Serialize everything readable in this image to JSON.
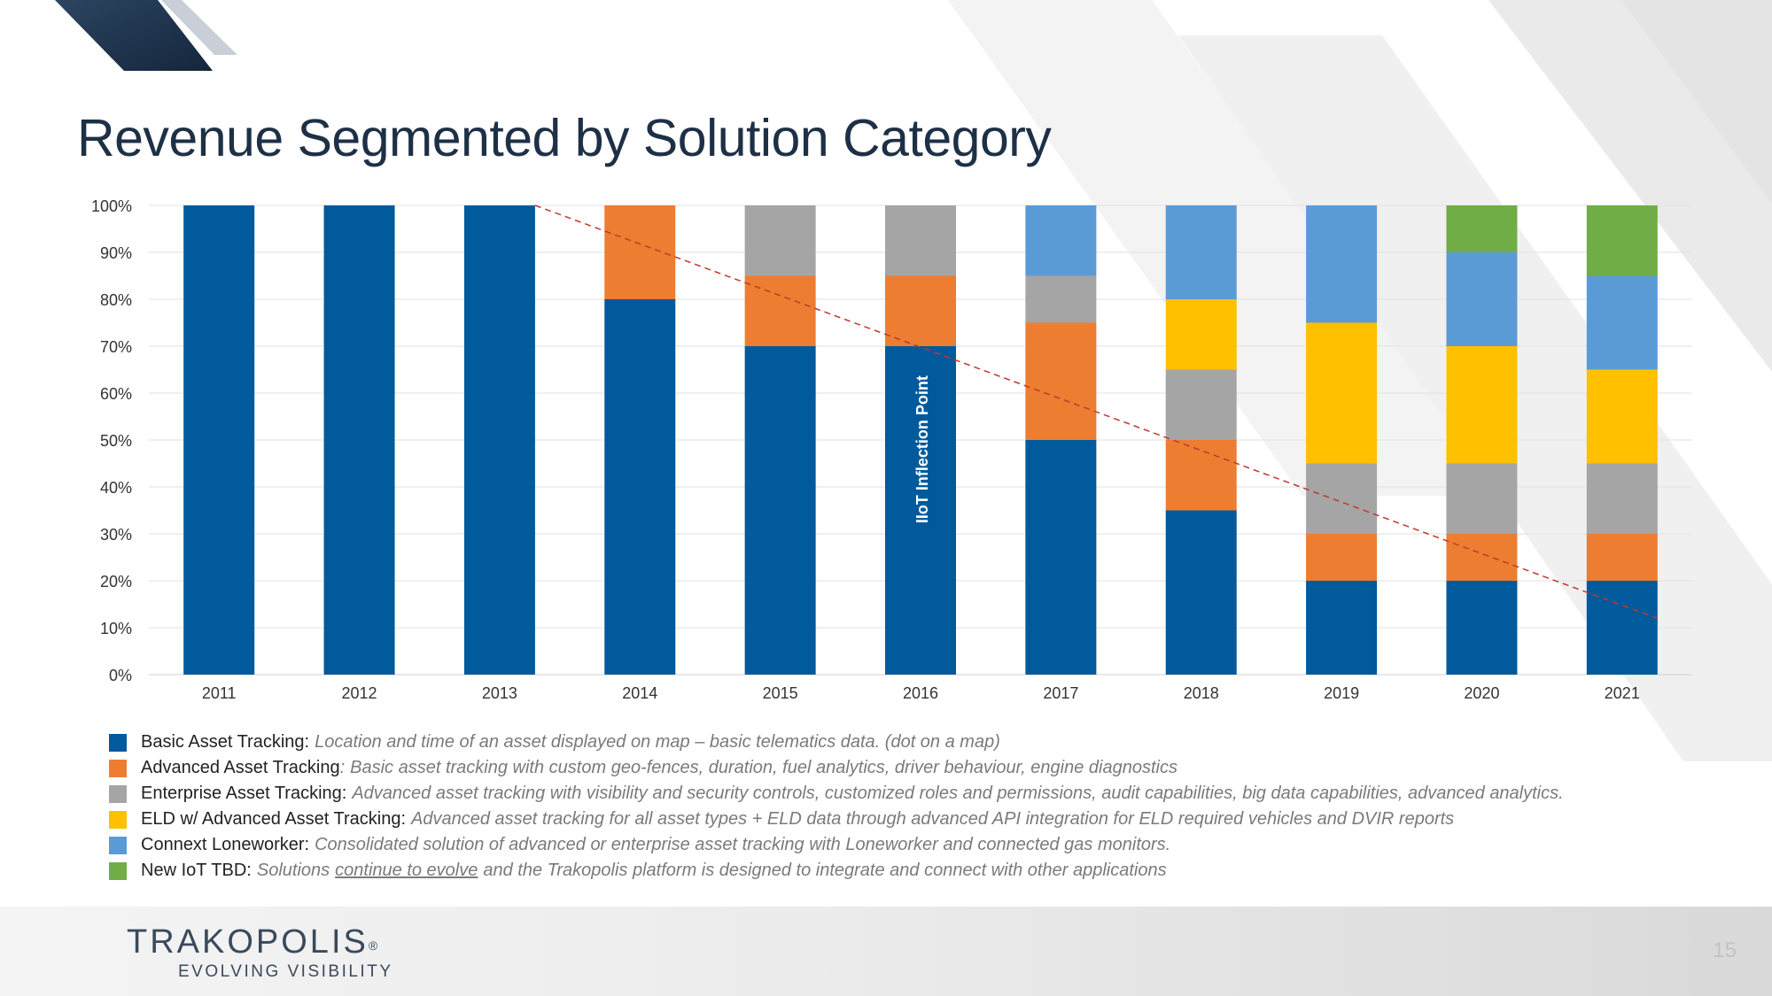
{
  "slide": {
    "title": "Revenue Segmented by Solution Category",
    "page_number": "15"
  },
  "logo": {
    "name": "TRAKOPOLIS",
    "registered": "®",
    "tagline": "EVOLVING VISIBILITY"
  },
  "chart_data": {
    "type": "bar",
    "stacked": true,
    "categories": [
      "2011",
      "2012",
      "2013",
      "2014",
      "2015",
      "2016",
      "2017",
      "2018",
      "2019",
      "2020",
      "2021"
    ],
    "ylim": [
      0,
      100
    ],
    "y_ticks": [
      "0%",
      "10%",
      "20%",
      "30%",
      "40%",
      "50%",
      "60%",
      "70%",
      "80%",
      "90%",
      "100%"
    ],
    "grid": true,
    "series": [
      {
        "name": "Basic Asset Tracking",
        "color": "#005a9c",
        "values": [
          100,
          100,
          100,
          80,
          70,
          70,
          50,
          35,
          20,
          20,
          20
        ]
      },
      {
        "name": "Advanced Asset Tracking",
        "color": "#ed7d31",
        "values": [
          0,
          0,
          0,
          20,
          15,
          15,
          25,
          15,
          10,
          10,
          10
        ]
      },
      {
        "name": "Enterprise Asset Tracking",
        "color": "#a5a5a5",
        "values": [
          0,
          0,
          0,
          0,
          15,
          15,
          10,
          15,
          15,
          15,
          15
        ]
      },
      {
        "name": "ELD w/ Advanced Asset Tracking",
        "color": "#ffc000",
        "values": [
          0,
          0,
          0,
          0,
          0,
          0,
          0,
          15,
          30,
          25,
          20
        ]
      },
      {
        "name": "Connext Loneworker",
        "color": "#5b9bd5",
        "values": [
          0,
          0,
          0,
          0,
          0,
          0,
          15,
          20,
          25,
          20,
          20
        ]
      },
      {
        "name": "New IoT TBD",
        "color": "#70ad47",
        "values": [
          0,
          0,
          0,
          0,
          0,
          0,
          0,
          0,
          0,
          10,
          15
        ]
      }
    ],
    "annotation": {
      "text": "IIoT Inflection Point",
      "category": "2016"
    },
    "trendline": {
      "style": "dashed",
      "color": "#c0392b",
      "from": {
        "category": "2013",
        "value": 100
      },
      "to": {
        "category": "2021",
        "value": 12
      }
    }
  },
  "legend": [
    {
      "name": "Basic Asset Tracking:",
      "desc": "Location and time of an asset displayed on map – basic telematics data. (dot on a map)"
    },
    {
      "name": "Advanced Asset Tracking",
      "name_suffix": ":",
      "desc": "Basic asset tracking with custom geo-fences, duration, fuel analytics, driver behaviour, engine diagnostics"
    },
    {
      "name": "Enterprise Asset Tracking:",
      "desc": "Advanced asset tracking with visibility and security controls, customized roles and permissions, audit capabilities, big data capabilities, advanced analytics."
    },
    {
      "name": "ELD w/ Advanced Asset Tracking:",
      "desc": "Advanced asset tracking for all asset types + ELD data through advanced API integration for ELD required vehicles and DVIR reports"
    },
    {
      "name": "Connext Loneworker:",
      "desc": "Consolidated solution of advanced or enterprise asset tracking with Loneworker and connected gas monitors."
    },
    {
      "name": "New IoT TBD:",
      "desc": "Solutions",
      "desc_underlined": "continue to evolve",
      "desc_rest": "and the Trakopolis platform is designed to integrate and connect with other applications"
    }
  ]
}
